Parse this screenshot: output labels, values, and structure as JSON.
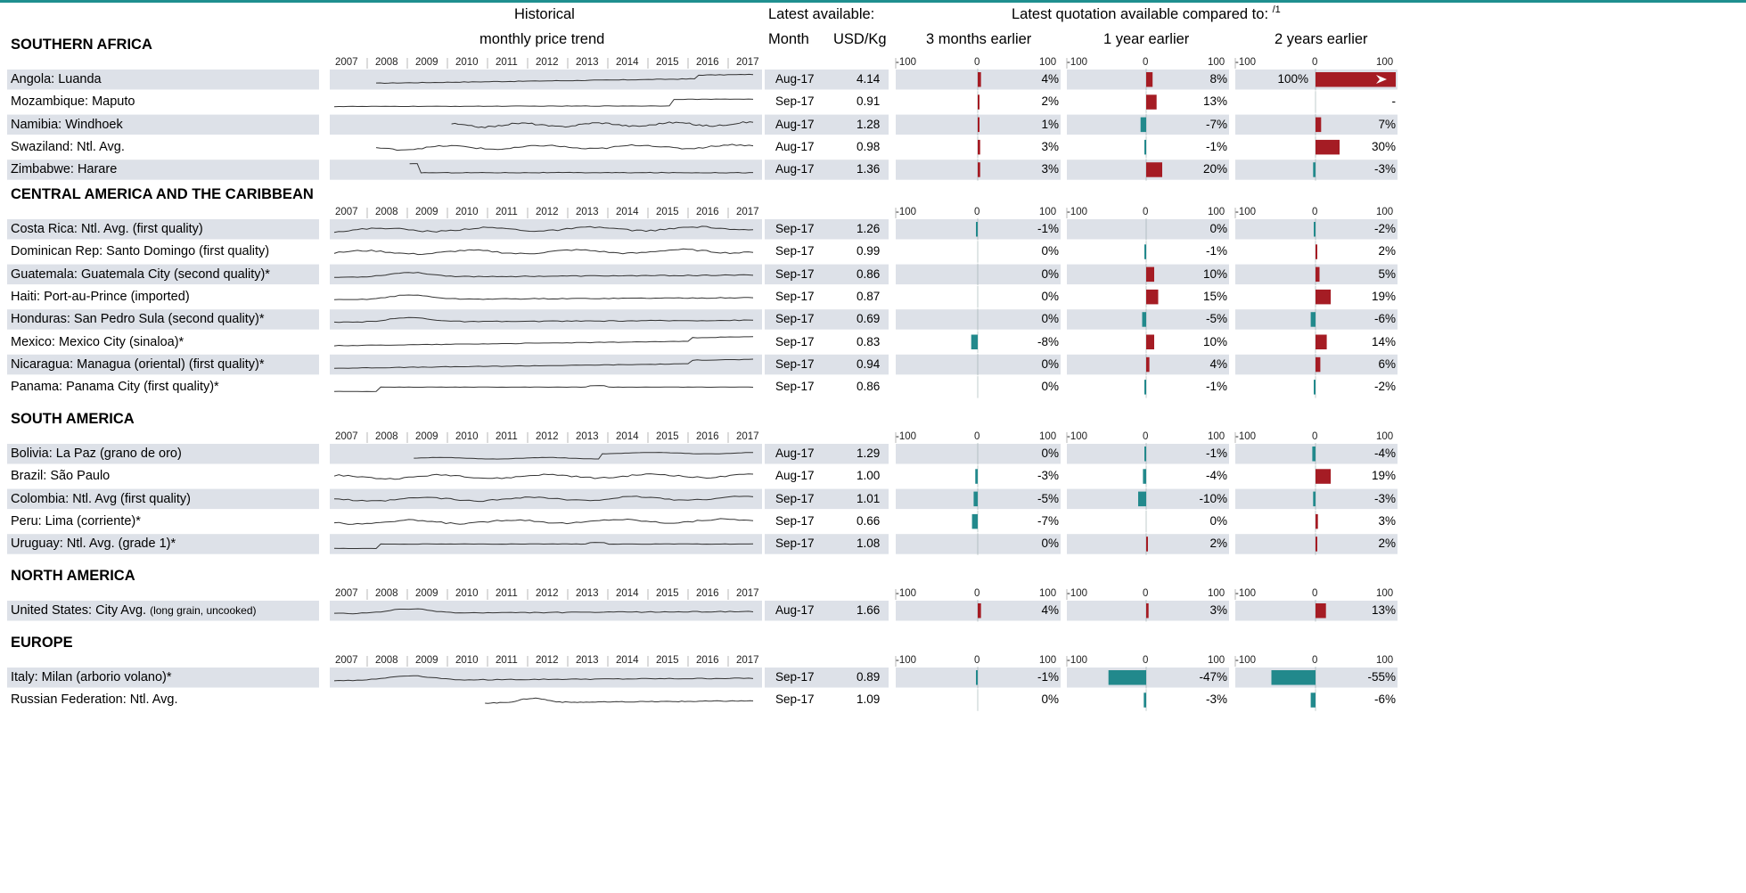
{
  "header": {
    "historical_line1": "Historical",
    "historical_line2": "monthly price trend",
    "latest_available": "Latest available:",
    "month": "Month",
    "usd_kg": "USD/Kg",
    "latest_quotation": "Latest quotation available compared to:",
    "footnote_marker": "/1",
    "cmp_3m": "3 months earlier",
    "cmp_1y": "1 year earlier",
    "cmp_2y": "2 years earlier"
  },
  "axis": {
    "years": [
      "2007",
      "2008",
      "2009",
      "2010",
      "2011",
      "2012",
      "2013",
      "2014",
      "2015",
      "2016",
      "2017"
    ],
    "bar_ticks": [
      "-100",
      "0",
      "100"
    ]
  },
  "colors": {
    "positive": "#a51c24",
    "negative": "#22898c",
    "row_shade": "#dde1e8",
    "spark": "#333333"
  },
  "chart_data": {
    "type": "table",
    "title": "",
    "sections": [
      {
        "name": "SOUTHERN AFRICA",
        "rows": [
          {
            "label": "Angola: Luanda",
            "month": "Aug-17",
            "price": "4.14",
            "p3m": 4,
            "p1y": 8,
            "p2y": 100,
            "t3m": "4%",
            "t1y": "8%",
            "t2y": "100%",
            "over2y": true,
            "trend": [
              null,
              null,
              null,
              null,
              null,
              null,
              null,
              null,
              null,
              null,
              null,
              null,
              null,
              null,
              1.0,
              1.02,
              1.05,
              1.08,
              1.1,
              1.13,
              1.16,
              1.18,
              1.22,
              1.25,
              1.28,
              1.32,
              1.35,
              1.38,
              1.42,
              1.45,
              1.48,
              1.5,
              1.55,
              1.6,
              1.75,
              2.2,
              2.8,
              3.2,
              3.5,
              3.8,
              3.9,
              4.0,
              4.05,
              4.1,
              4.1,
              4.14
            ]
          },
          {
            "label": "Mozambique: Maputo",
            "month": "Sep-17",
            "price": "0.91",
            "p3m": 2,
            "p1y": 13,
            "p2y": null,
            "t3m": "2%",
            "t1y": "13%",
            "t2y": "-",
            "trend": [
              0.5,
              0.5,
              0.5,
              0.52,
              0.52,
              0.53,
              0.54,
              0.55,
              0.55,
              0.56,
              0.57,
              0.57,
              0.58,
              0.58,
              0.59,
              0.6,
              0.6,
              0.6,
              0.61,
              0.61,
              0.62,
              0.62,
              0.62,
              0.63,
              0.63,
              0.63,
              0.64,
              0.64,
              0.64,
              0.64,
              0.65,
              0.65,
              0.65,
              0.65,
              0.66,
              0.66,
              0.66,
              0.66,
              null,
              0.68,
              0.72,
              0.82,
              0.84,
              0.86,
              0.9,
              0.91
            ]
          },
          {
            "label": "Namibia: Windhoek",
            "month": "Aug-17",
            "price": "1.28",
            "p3m": 1,
            "p1y": -7,
            "p2y": 7,
            "t3m": "1%",
            "t1y": "-7%",
            "t2y": "7%",
            "trend": [
              null,
              null,
              null,
              null,
              null,
              null,
              null,
              null,
              null,
              null,
              null,
              null,
              null,
              null,
              null,
              null,
              null,
              null,
              null,
              null,
              null,
              null,
              null,
              null,
              null,
              null,
              null,
              null,
              null,
              null,
              null,
              null,
              null,
              null,
              null,
              null,
              null,
              null,
              null,
              null,
              null,
              null,
              null,
              null,
              null,
              null
            ]
          },
          {
            "label": "Swaziland: Ntl. Avg.",
            "month": "Aug-17",
            "price": "0.98",
            "p3m": 3,
            "p1y": -1,
            "p2y": 30,
            "t3m": "3%",
            "t1y": "-1%",
            "t2y": "30%",
            "trend": []
          },
          {
            "label": "Zimbabwe: Harare",
            "month": "Aug-17",
            "price": "1.36",
            "p3m": 3,
            "p1y": 20,
            "p2y": -3,
            "t3m": "3%",
            "t1y": "20%",
            "t2y": "-3%",
            "trend": []
          }
        ]
      },
      {
        "name": "CENTRAL AMERICA AND THE CARIBBEAN",
        "rows": [
          {
            "label": "Costa Rica: Ntl. Avg. (first quality)",
            "month": "Sep-17",
            "price": "1.26",
            "p3m": -1,
            "p1y": 0,
            "p2y": -2,
            "t3m": "-1%",
            "t1y": "0%",
            "t2y": "-2%",
            "trend": []
          },
          {
            "label": "Dominican Rep: Santo Domingo (first quality)",
            "month": "Sep-17",
            "price": "0.99",
            "p3m": 0,
            "p1y": -1,
            "p2y": 2,
            "t3m": "0%",
            "t1y": "-1%",
            "t2y": "2%",
            "trend": []
          },
          {
            "label": "Guatemala: Guatemala City (second quality)*",
            "month": "Sep-17",
            "price": "0.86",
            "p3m": 0,
            "p1y": 10,
            "p2y": 5,
            "t3m": "0%",
            "t1y": "10%",
            "t2y": "5%",
            "trend": []
          },
          {
            "label": "Haiti: Port-au-Prince (imported)",
            "month": "Sep-17",
            "price": "0.87",
            "p3m": 0,
            "p1y": 15,
            "p2y": 19,
            "t3m": "0%",
            "t1y": "15%",
            "t2y": "19%",
            "trend": []
          },
          {
            "label": "Honduras: San Pedro Sula (second quality)*",
            "month": "Sep-17",
            "price": "0.69",
            "p3m": 0,
            "p1y": -5,
            "p2y": -6,
            "t3m": "0%",
            "t1y": "-5%",
            "t2y": "-6%",
            "trend": []
          },
          {
            "label": "Mexico: Mexico City (sinaloa)*",
            "month": "Sep-17",
            "price": "0.83",
            "p3m": -8,
            "p1y": 10,
            "p2y": 14,
            "t3m": "-8%",
            "t1y": "10%",
            "t2y": "14%",
            "trend": []
          },
          {
            "label": "Nicaragua: Managua (oriental) (first quality)*",
            "month": "Sep-17",
            "price": "0.94",
            "p3m": 0,
            "p1y": 4,
            "p2y": 6,
            "t3m": "0%",
            "t1y": "4%",
            "t2y": "6%",
            "trend": []
          },
          {
            "label": "Panama: Panama City (first quality)*",
            "month": "Sep-17",
            "price": "0.86",
            "p3m": 0,
            "p1y": -1,
            "p2y": -2,
            "t3m": "0%",
            "t1y": "-1%",
            "t2y": "-2%",
            "trend": []
          }
        ]
      },
      {
        "name": "SOUTH AMERICA",
        "rows": [
          {
            "label": "Bolivia: La Paz (grano de oro)",
            "month": "Aug-17",
            "price": "1.29",
            "p3m": 0,
            "p1y": -1,
            "p2y": -4,
            "t3m": "0%",
            "t1y": "-1%",
            "t2y": "-4%",
            "trend": []
          },
          {
            "label": "Brazil: São Paulo",
            "month": "Aug-17",
            "price": "1.00",
            "p3m": -3,
            "p1y": -4,
            "p2y": 19,
            "t3m": "-3%",
            "t1y": "-4%",
            "t2y": "19%",
            "trend": []
          },
          {
            "label": "Colombia: Ntl. Avg (first quality)",
            "month": "Sep-17",
            "price": "1.01",
            "p3m": -5,
            "p1y": -10,
            "p2y": -3,
            "t3m": "-5%",
            "t1y": "-10%",
            "t2y": "-3%",
            "trend": []
          },
          {
            "label": "Peru: Lima (corriente)*",
            "month": "Sep-17",
            "price": "0.66",
            "p3m": -7,
            "p1y": 0,
            "p2y": 3,
            "t3m": "-7%",
            "t1y": "0%",
            "t2y": "3%",
            "trend": []
          },
          {
            "label": "Uruguay: Ntl. Avg. (grade 1)*",
            "month": "Sep-17",
            "price": "1.08",
            "p3m": 0,
            "p1y": 2,
            "p2y": 2,
            "t3m": "0%",
            "t1y": "2%",
            "t2y": "2%",
            "trend": []
          }
        ]
      },
      {
        "name": "NORTH AMERICA",
        "rows": [
          {
            "label": "United States: City Avg.",
            "label_small": "(long grain, uncooked)",
            "month": "Aug-17",
            "price": "1.66",
            "p3m": 4,
            "p1y": 3,
            "p2y": 13,
            "t3m": "4%",
            "t1y": "3%",
            "t2y": "13%",
            "trend": []
          }
        ]
      },
      {
        "name": "EUROPE",
        "rows": [
          {
            "label": "Italy: Milan (arborio volano)*",
            "month": "Sep-17",
            "price": "0.89",
            "p3m": -1,
            "p1y": -47,
            "p2y": -55,
            "t3m": "-1%",
            "t1y": "-47%",
            "t2y": "-55%",
            "trend": []
          },
          {
            "label": "Russian Federation: Ntl. Avg.",
            "month": "Sep-17",
            "price": "1.09",
            "p3m": 0,
            "p1y": -3,
            "p2y": -6,
            "t3m": "0%",
            "t1y": "-3%",
            "t2y": "-6%",
            "trend": []
          }
        ]
      }
    ]
  }
}
